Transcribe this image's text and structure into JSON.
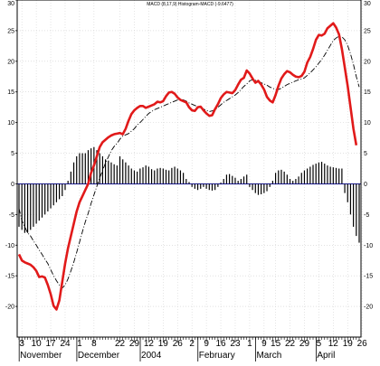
{
  "chart_data": {
    "type": "line",
    "title": "MACD (8,17,9) Histogram-MACD (-9.6477)",
    "ylim": [
      -25,
      30
    ],
    "y_ticks": [
      -20,
      -15,
      -10,
      -5,
      0,
      5,
      10,
      15,
      20,
      25,
      30
    ],
    "grid": true,
    "x_ticks": [
      {
        "label": "3",
        "i": 1
      },
      {
        "label": "10",
        "i": 6
      },
      {
        "label": "17",
        "i": 11
      },
      {
        "label": "24",
        "i": 16
      },
      {
        "label": "1",
        "i": 21
      },
      {
        "label": "8",
        "i": 26
      },
      {
        "label": "22",
        "i": 35
      },
      {
        "label": "29",
        "i": 40
      },
      {
        "label": "12",
        "i": 45
      },
      {
        "label": "19",
        "i": 50
      },
      {
        "label": "26",
        "i": 55
      },
      {
        "label": "2",
        "i": 60
      },
      {
        "label": "9",
        "i": 65
      },
      {
        "label": "16",
        "i": 70
      },
      {
        "label": "23",
        "i": 75
      },
      {
        "label": "1",
        "i": 80
      },
      {
        "label": "9",
        "i": 85
      },
      {
        "label": "15",
        "i": 89
      },
      {
        "label": "22",
        "i": 94
      },
      {
        "label": "29",
        "i": 99
      },
      {
        "label": "5",
        "i": 104
      },
      {
        "label": "12",
        "i": 109
      },
      {
        "label": "19",
        "i": 114
      },
      {
        "label": "26",
        "i": 119
      }
    ],
    "month_labels": [
      {
        "label": "November",
        "i": 1
      },
      {
        "label": "December",
        "i": 21
      },
      {
        "label": "2004",
        "i": 43
      },
      {
        "label": "February",
        "i": 63
      },
      {
        "label": "March",
        "i": 83
      },
      {
        "label": "April",
        "i": 104
      }
    ],
    "series": [
      {
        "role": "histogram",
        "color": "#000000",
        "values": [
          -7,
          -7.5,
          -8,
          -8,
          -7.5,
          -7,
          -6.5,
          -6,
          -5.5,
          -5,
          -4.5,
          -4,
          -3.5,
          -3,
          -2.5,
          -2,
          -1,
          0.5,
          2,
          3.5,
          4.5,
          5,
          5,
          5,
          5.5,
          5.8,
          6,
          5.5,
          5,
          4.5,
          4,
          3.8,
          3.5,
          3.2,
          3,
          4.5,
          4,
          3.5,
          3,
          2.5,
          2.2,
          2,
          2.5,
          2.7,
          3,
          2.8,
          2.4,
          2.2,
          2.5,
          2.6,
          2.5,
          2.3,
          2.2,
          2.6,
          2.8,
          2.5,
          2.2,
          1.8,
          0.8,
          0.3,
          -0.5,
          -0.8,
          -1,
          -0.8,
          -0.5,
          -0.8,
          -1,
          -1.1,
          -1,
          -0.5,
          0.2,
          0.8,
          1.5,
          1.6,
          1.3,
          1,
          0.5,
          0.8,
          1.2,
          1.5,
          -0.5,
          -1,
          -1.5,
          -1.8,
          -1.7,
          -1.5,
          -1.2,
          -0.5,
          0.5,
          1.8,
          2.2,
          2.3,
          2,
          1.5,
          0.8,
          0.5,
          0.8,
          1.2,
          1.8,
          2.2,
          2.5,
          2.8,
          3.1,
          3.3,
          3.5,
          3.6,
          3.3,
          3,
          2.8,
          2.7,
          2.6,
          2.5,
          2.5,
          -1.5,
          -3,
          -5,
          -7,
          -8.5,
          -9.6
        ]
      },
      {
        "role": "macd",
        "color": "#e11a1a",
        "values": [
          -11.5,
          -12.5,
          -12.8,
          -13,
          -13.2,
          -13.6,
          -14.2,
          -15.2,
          -15.1,
          -15.3,
          -16.5,
          -18,
          -19.9,
          -20.5,
          -19,
          -16,
          -13,
          -10.5,
          -8.5,
          -6.5,
          -4.5,
          -3,
          -2,
          -1,
          0,
          1.8,
          3,
          4.5,
          6,
          6.8,
          7.2,
          7.6,
          7.9,
          8.1,
          8.2,
          8.3,
          8.1,
          9,
          10.3,
          11.4,
          12,
          12.4,
          12.7,
          12.7,
          12.4,
          12.6,
          12.8,
          13,
          13.4,
          13.3,
          13.5,
          14.3,
          14.9,
          15,
          14.7,
          14.1,
          13.7,
          13.5,
          13.3,
          12.5,
          12,
          11.9,
          12.5,
          12.6,
          12,
          11.5,
          11.1,
          11.2,
          12.2,
          13,
          14,
          14.6,
          15,
          14.9,
          14.8,
          15.3,
          16.2,
          17,
          17.3,
          18.5,
          18,
          17.2,
          16.5,
          16.8,
          16.2,
          15.4,
          14.2,
          13.6,
          13.3,
          14.5,
          16,
          17.2,
          17.9,
          18.4,
          18.2,
          17.8,
          17.5,
          17.4,
          17.6,
          18.3,
          19.8,
          20.7,
          22,
          23.5,
          24.3,
          24.2,
          24.5,
          25.4,
          25.8,
          26.2,
          25.5,
          24.4,
          22,
          19,
          16,
          12.5,
          9,
          6.3
        ]
      },
      {
        "role": "signal",
        "color": "#000000",
        "values": [
          -4,
          -6,
          -7,
          -8,
          -8.5,
          -9.3,
          -10,
          -10.8,
          -11.5,
          -12.3,
          -13,
          -14,
          -15,
          -15.8,
          -16.5,
          -17,
          -16.5,
          -15.5,
          -14.2,
          -12.8,
          -11.2,
          -9.5,
          -7.8,
          -6.2,
          -4.8,
          -3.2,
          -1.8,
          -0.4,
          1,
          2.2,
          3.4,
          4.4,
          5.4,
          6.1,
          6.6,
          7.3,
          7.8,
          8,
          8.2,
          8.6,
          9,
          9.6,
          10,
          10.5,
          11,
          11.5,
          11.8,
          12.1,
          12.3,
          12.5,
          12.7,
          12.9,
          13.1,
          13.3,
          13.5,
          13.7,
          13.8,
          13.7,
          13.5,
          13.2,
          13,
          12.8,
          12.6,
          12.4,
          12.2,
          12,
          11.8,
          11.9,
          12.1,
          12.5,
          12.9,
          13.3,
          13.6,
          13.9,
          14.2,
          14.5,
          14.9,
          15.4,
          15.9,
          16.3,
          16.8,
          17,
          16.9,
          16.7,
          16.5,
          16.3,
          16.1,
          15.8,
          15.6,
          15.4,
          15.4,
          15.6,
          15.9,
          16.2,
          16.4,
          16.6,
          16.8,
          17,
          17.1,
          17.3,
          17.7,
          18.1,
          18.6,
          19.1,
          19.7,
          20.3,
          21,
          21.8,
          22.6,
          23.4,
          23.8,
          24.1,
          24,
          23.5,
          22.6,
          21.2,
          19.5,
          17.5,
          15.8
        ]
      }
    ]
  }
}
